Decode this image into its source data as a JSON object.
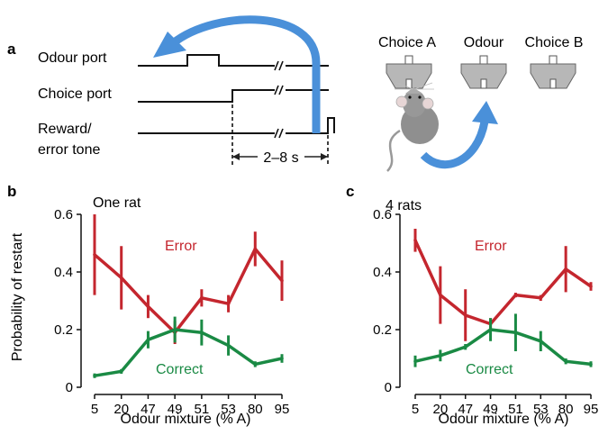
{
  "panel_a": {
    "letter": "a",
    "traces": [
      "Odour port",
      "Choice port",
      "Reward/",
      "error tone"
    ],
    "interval": "2–8 s",
    "choices": [
      "Choice A",
      "Odour",
      "Choice B"
    ],
    "arrow_color": "#4a90d9"
  },
  "chart_data": [
    {
      "type": "line",
      "panel": "b",
      "annotation": "One rat",
      "title": "",
      "categories": [
        "5",
        "20",
        "47",
        "49",
        "51",
        "53",
        "80",
        "95"
      ],
      "xlabel": "Odour mixture (% A)",
      "ylabel": "Probability of restart",
      "ylim": [
        0,
        0.6
      ],
      "yticks": [
        "0",
        "0.2",
        "0.4",
        "0.6"
      ],
      "grid": false,
      "series": [
        {
          "name": "Error",
          "color": "#c4262e",
          "values": [
            0.46,
            0.38,
            0.28,
            0.19,
            0.31,
            0.29,
            0.48,
            0.37
          ],
          "err": [
            0.14,
            0.11,
            0.04,
            0.04,
            0.03,
            0.03,
            0.06,
            0.07
          ]
        },
        {
          "name": "Correct",
          "color": "#1a8a44",
          "values": [
            0.04,
            0.055,
            0.165,
            0.2,
            0.19,
            0.145,
            0.08,
            0.1
          ],
          "err": [
            0.008,
            0.008,
            0.03,
            0.045,
            0.045,
            0.035,
            0.01,
            0.015
          ]
        }
      ]
    },
    {
      "type": "line",
      "panel": "c",
      "annotation": "4 rats",
      "title": "",
      "categories": [
        "5",
        "20",
        "47",
        "49",
        "51",
        "53",
        "80",
        "95"
      ],
      "xlabel": "Odour mixture (% A)",
      "ylabel": "",
      "ylim": [
        0,
        0.6
      ],
      "yticks": [
        "0",
        "0.2",
        "0.4",
        "0.6"
      ],
      "grid": false,
      "series": [
        {
          "name": "Error",
          "color": "#c4262e",
          "values": [
            0.51,
            0.32,
            0.25,
            0.22,
            0.32,
            0.31,
            0.41,
            0.35
          ],
          "err": [
            0.04,
            0.1,
            0.09,
            0.02,
            0.008,
            0.01,
            0.08,
            0.015
          ]
        },
        {
          "name": "Correct",
          "color": "#1a8a44",
          "values": [
            0.09,
            0.11,
            0.14,
            0.2,
            0.19,
            0.16,
            0.09,
            0.08
          ],
          "err": [
            0.02,
            0.02,
            0.01,
            0.04,
            0.065,
            0.035,
            0.01,
            0.01
          ]
        }
      ]
    }
  ]
}
